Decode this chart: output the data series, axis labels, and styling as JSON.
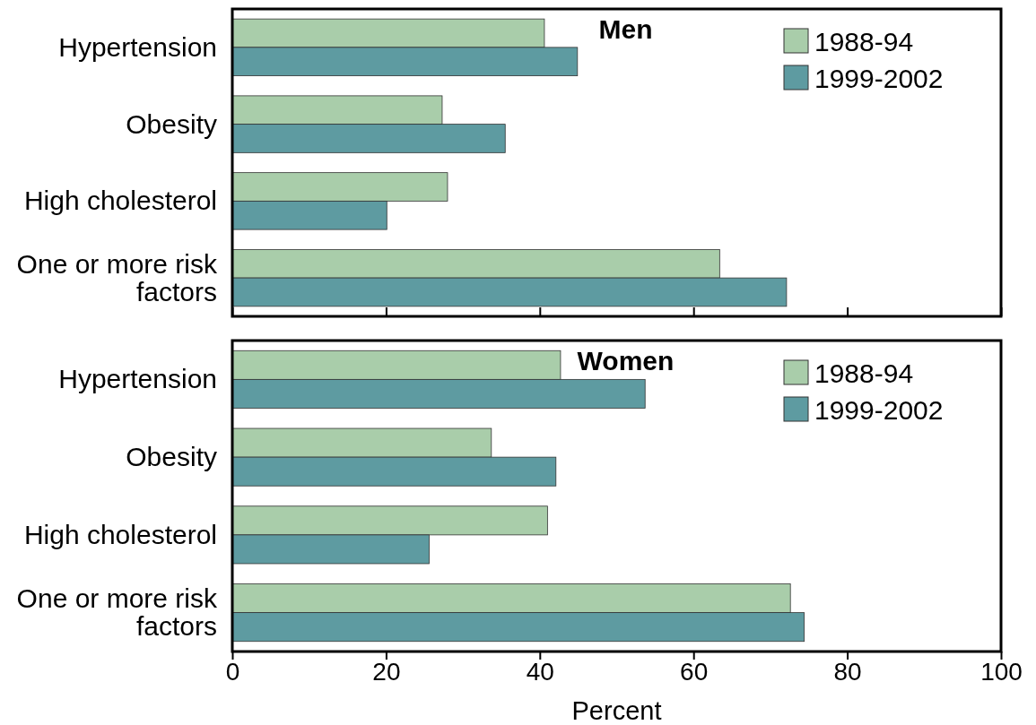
{
  "chart_data": [
    {
      "type": "bar",
      "orientation": "horizontal",
      "title": "Men",
      "categories": [
        "Hypertension",
        "Obesity",
        "High cholesterol",
        "One or more risk factors"
      ],
      "series": [
        {
          "name": "1988-94",
          "color": "#a9cdaa",
          "values": [
            40.6,
            27.3,
            28.0,
            63.4
          ]
        },
        {
          "name": "1999-2002",
          "color": "#5e9ba1",
          "values": [
            44.9,
            35.5,
            20.1,
            72.1
          ]
        }
      ],
      "xlim": [
        0,
        100
      ],
      "xticks": [
        0,
        20,
        40,
        60,
        80,
        100
      ],
      "tick_labels": "y",
      "legend": "top right",
      "grid": false
    },
    {
      "type": "bar",
      "orientation": "horizontal",
      "title": "Women",
      "xlabel": "Percent",
      "categories": [
        "Hypertension",
        "Obesity",
        "High cholesterol",
        "One or more risk factors"
      ],
      "series": [
        {
          "name": "1988-94",
          "color": "#a9cdaa",
          "values": [
            42.7,
            33.7,
            41.0,
            72.6
          ]
        },
        {
          "name": "1999-2002",
          "color": "#5e9ba1",
          "values": [
            53.7,
            42.1,
            25.6,
            74.4
          ]
        }
      ],
      "xlim": [
        0,
        100
      ],
      "xticks": [
        0,
        20,
        40,
        60,
        80,
        100
      ],
      "legend": "top right",
      "grid": false
    }
  ]
}
